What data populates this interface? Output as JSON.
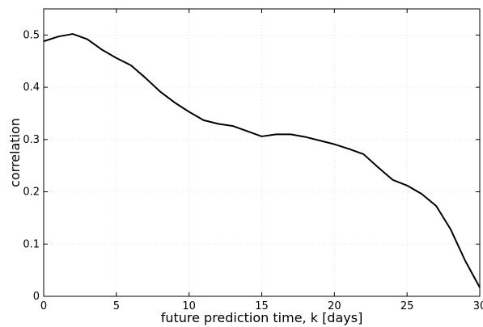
{
  "chart_data": {
    "type": "line",
    "title": "",
    "xlabel": "future prediction time, k [days]",
    "ylabel": "correlation",
    "xlim": [
      0,
      30
    ],
    "ylim": [
      0,
      0.55
    ],
    "xticks": [
      0,
      5,
      10,
      15,
      20,
      25,
      30
    ],
    "xtick_labels": [
      "0",
      "5",
      "10",
      "15",
      "20",
      "25",
      "30"
    ],
    "yticks": [
      0,
      0.1,
      0.2,
      0.3,
      0.4,
      0.5
    ],
    "ytick_labels": [
      "0",
      "0.1",
      "0.2",
      "0.3",
      "0.4",
      "0.5"
    ],
    "grid": true,
    "legend": "none",
    "line_color": "#000000",
    "series": [
      {
        "x": [
          0,
          1,
          2,
          3,
          4,
          5,
          6,
          7,
          8,
          9,
          10,
          11,
          12,
          13,
          14,
          15,
          16,
          17,
          18,
          19,
          20,
          21,
          22,
          23,
          24,
          25,
          26,
          27,
          28,
          29,
          30
        ],
        "values": [
          0.488,
          0.497,
          0.502,
          0.492,
          0.472,
          0.456,
          0.442,
          0.418,
          0.392,
          0.371,
          0.353,
          0.337,
          0.33,
          0.326,
          0.316,
          0.306,
          0.31,
          0.31,
          0.305,
          0.298,
          0.291,
          0.282,
          0.272,
          0.247,
          0.223,
          0.212,
          0.196,
          0.173,
          0.128,
          0.068,
          0.017
        ]
      }
    ]
  }
}
